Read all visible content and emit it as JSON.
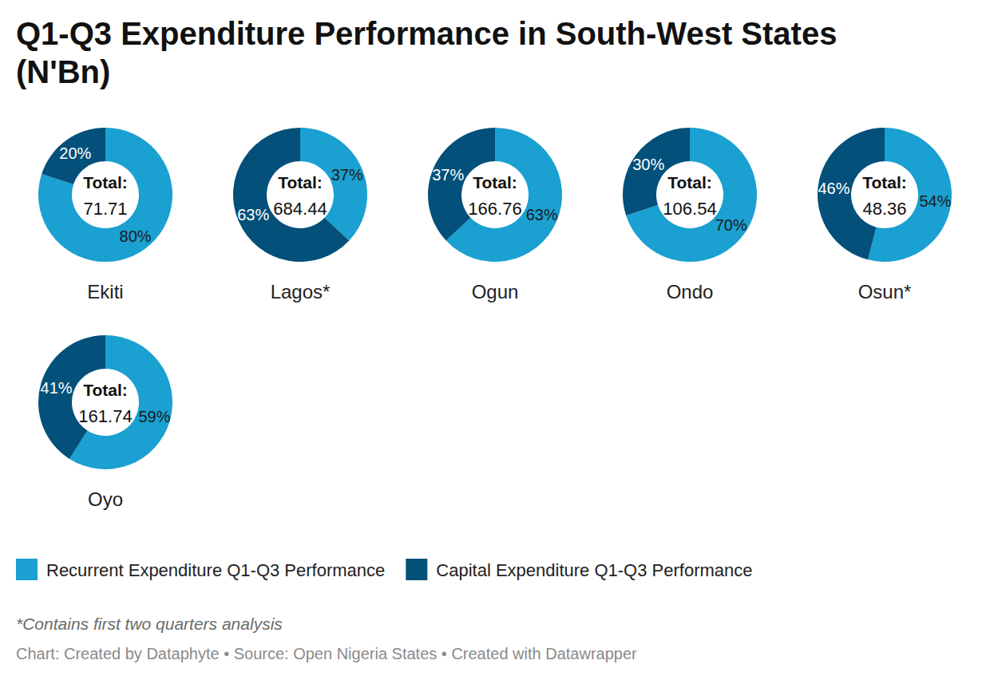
{
  "chart_data": {
    "type": "donut",
    "title": "Q1-Q3 Expenditure Performance in South-West States (N'Bn)",
    "categories": [
      "Ekiti",
      "Lagos*",
      "Ogun",
      "Ondo",
      "Osun*",
      "Oyo"
    ],
    "series": [
      {
        "name": "Recurrent Expenditure Q1-Q3 Performance",
        "color": "#1aa0d1",
        "values": [
          80,
          37,
          63,
          70,
          54,
          59
        ],
        "value_labels": [
          "80%",
          "37%",
          "63%",
          "70%",
          "54%",
          "59%"
        ]
      },
      {
        "name": "Capital Expenditure Q1-Q3 Performance",
        "color": "#03507a",
        "values": [
          20,
          63,
          37,
          30,
          46,
          41
        ],
        "value_labels": [
          "20%",
          "63%",
          "37%",
          "30%",
          "46%",
          "41%"
        ]
      }
    ],
    "total_label": "Total:",
    "totals": [
      71.71,
      684.44,
      166.76,
      106.54,
      48.36,
      161.74
    ],
    "data_labels": true,
    "legend": "bottom",
    "note": "*Contains first two quarters analysis",
    "source": "Chart: Created by Dataphyte • Source: Open Nigeria States • Created with Datawrapper"
  }
}
